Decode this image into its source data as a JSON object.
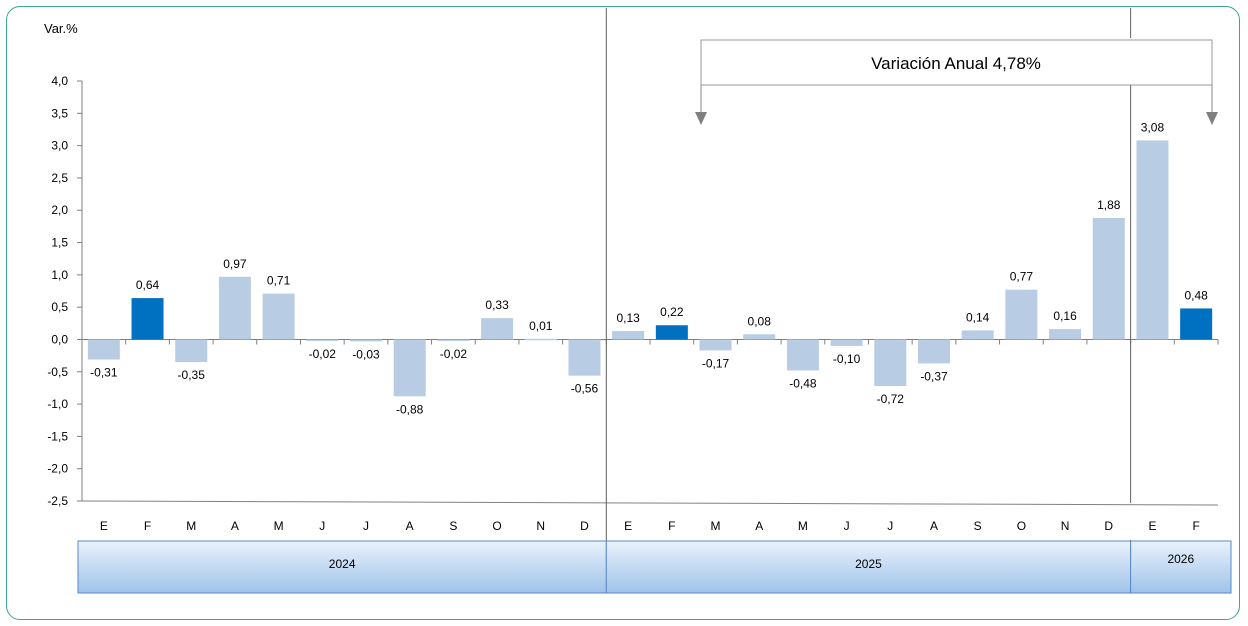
{
  "chart_data": {
    "type": "bar",
    "ylabel": "Var.%",
    "ylim": [
      -2.5,
      4.0
    ],
    "yticks": [
      "4,0",
      "3,5",
      "3,0",
      "2,5",
      "2,0",
      "1,5",
      "1,0",
      "0,5",
      "0,0",
      "-0,5",
      "-1,0",
      "-1,5",
      "-2,0",
      "-2,5"
    ],
    "categories": [
      "E",
      "F",
      "M",
      "A",
      "M",
      "J",
      "J",
      "A",
      "S",
      "O",
      "N",
      "D",
      "E",
      "F",
      "M",
      "A",
      "M",
      "J",
      "J",
      "A",
      "S",
      "O",
      "N",
      "D",
      "E",
      "F"
    ],
    "values": [
      -0.31,
      0.64,
      -0.35,
      0.97,
      0.71,
      -0.02,
      -0.03,
      -0.88,
      -0.02,
      0.33,
      0.01,
      -0.56,
      0.13,
      0.22,
      -0.17,
      0.08,
      -0.48,
      -0.1,
      -0.72,
      -0.37,
      0.14,
      0.77,
      0.16,
      1.88,
      3.08,
      0.48
    ],
    "value_labels": [
      "-0,31",
      "0,64",
      "-0,35",
      "0,97",
      "0,71",
      "-0,02",
      "-0,03",
      "-0,88",
      "-0,02",
      "0,33",
      "0,01",
      "-0,56",
      "0,13",
      "0,22",
      "-0,17",
      "0,08",
      "-0,48",
      "-0,10",
      "-0,72",
      "-0,37",
      "0,14",
      "0,77",
      "0,16",
      "1,88",
      "3,08",
      "0,48"
    ],
    "highlighted": [
      1,
      13,
      25
    ],
    "years": [
      {
        "label": "2024",
        "start": 0,
        "end": 11
      },
      {
        "label": "2025",
        "start": 12,
        "end": 23
      },
      {
        "label": "2026",
        "start": 24,
        "end": 25
      }
    ],
    "annotation": "Variación Anual 4,78%",
    "colors": {
      "bar": "#b8cce4",
      "highlight": "#0070c0",
      "frame": "#3aa39a",
      "year_band_top": "#eaf2fc",
      "year_band_bottom": "#9fc3ea"
    }
  }
}
